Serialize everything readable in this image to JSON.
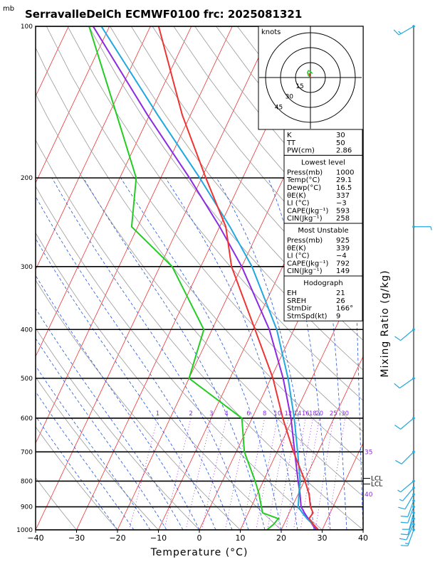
{
  "title": "SerravalleDelCh ECMWF0100  frc: 2025081321",
  "y_unit": "mb",
  "xlabel": "Temperature (°C)",
  "mixing_label": "Mixing Ratio (g/kg)",
  "hodograph": {
    "unit": "knots",
    "rings": [
      "15",
      "30",
      "45"
    ]
  },
  "indices": [
    {
      "type": "row",
      "label": "K",
      "value": "30"
    },
    {
      "type": "row",
      "label": "TT",
      "value": "50"
    },
    {
      "type": "row",
      "label": "PW(cm)",
      "value": "2.86"
    },
    {
      "type": "header",
      "label": "Lowest level"
    },
    {
      "type": "row",
      "label": "Press(mb)",
      "value": "1000"
    },
    {
      "type": "row",
      "label": "Temp(°C)",
      "value": "29.1"
    },
    {
      "type": "row",
      "label": "Dewp(°C)",
      "value": "16.5"
    },
    {
      "type": "row",
      "label": "θE(K)",
      "value": "337"
    },
    {
      "type": "row",
      "label": "LI (°C)",
      "value": "−3"
    },
    {
      "type": "row",
      "label": "CAPE(Jkg⁻¹)",
      "value": "593"
    },
    {
      "type": "row",
      "label": "CIN(Jkg⁻¹)",
      "value": "258"
    },
    {
      "type": "header",
      "label": "Most Unstable"
    },
    {
      "type": "row",
      "label": "Press(mb)",
      "value": "925"
    },
    {
      "type": "row",
      "label": "θE(K)",
      "value": "339"
    },
    {
      "type": "row",
      "label": "LI (°C)",
      "value": "−4"
    },
    {
      "type": "row",
      "label": "CAPE(Jkg⁻¹)",
      "value": "792"
    },
    {
      "type": "row",
      "label": "CIN(Jkg⁻¹)",
      "value": "149"
    },
    {
      "type": "header",
      "label": "Hodograph"
    },
    {
      "type": "row",
      "label": "EH",
      "value": "21"
    },
    {
      "type": "row",
      "label": "SREH",
      "value": "26"
    },
    {
      "type": "row",
      "label": "StmDir",
      "value": "166°"
    },
    {
      "type": "row",
      "label": "StmSpd(kt)",
      "value": "9"
    }
  ],
  "chart_data": {
    "type": "line",
    "title": "SerravalleDelCh ECMWF0100  frc: 2025081321",
    "xlabel": "Temperature (°C)",
    "ylabel": "mb",
    "xlim": [
      -40,
      40
    ],
    "ylim": [
      1000,
      100
    ],
    "y_scale": "log",
    "x_ticks": [
      "−40",
      "−30",
      "−20",
      "−10",
      "0",
      "10",
      "20",
      "30",
      "40"
    ],
    "p_ticks": [
      "100",
      "200",
      "300",
      "400",
      "500",
      "600",
      "700",
      "800",
      "900",
      "1000"
    ],
    "mixing_ratio_labels": [
      "1",
      "2",
      "3",
      "4",
      "6",
      "8",
      "10",
      "12",
      "14",
      "16",
      "18",
      "20",
      "25",
      "30"
    ],
    "theta_e_labels": [
      "35",
      "40"
    ],
    "lcl_label": "LCL",
    "temperature_profile": [
      [
        1000,
        29.1
      ],
      [
        975,
        27.2
      ],
      [
        950,
        25.5
      ],
      [
        925,
        25.8
      ],
      [
        900,
        24.5
      ],
      [
        850,
        22.7
      ],
      [
        800,
        20.2
      ],
      [
        700,
        14.0
      ],
      [
        600,
        7.5
      ],
      [
        500,
        0.5
      ],
      [
        400,
        -9.5
      ],
      [
        300,
        -22.5
      ],
      [
        250,
        -28.5
      ],
      [
        200,
        -39.0
      ],
      [
        150,
        -52.0
      ],
      [
        100,
        -68.0
      ]
    ],
    "dewpoint_profile": [
      [
        1000,
        16.5
      ],
      [
        975,
        17.5
      ],
      [
        950,
        18.0
      ],
      [
        925,
        13.5
      ],
      [
        900,
        12.5
      ],
      [
        850,
        10.5
      ],
      [
        800,
        8.0
      ],
      [
        700,
        2.0
      ],
      [
        600,
        -2.5
      ],
      [
        500,
        -20.0
      ],
      [
        400,
        -22.0
      ],
      [
        300,
        -37.0
      ],
      [
        250,
        -51.5
      ],
      [
        200,
        -56.0
      ],
      [
        150,
        -68.0
      ],
      [
        100,
        -85.0
      ]
    ],
    "parcel_profile": [
      [
        1000,
        29.1
      ],
      [
        950,
        25.0
      ],
      [
        925,
        23.2
      ],
      [
        900,
        21.5
      ],
      [
        850,
        20.2
      ],
      [
        800,
        19.0
      ],
      [
        700,
        15.0
      ],
      [
        600,
        10.3
      ],
      [
        500,
        4.2
      ],
      [
        400,
        -4.2
      ],
      [
        300,
        -17.5
      ],
      [
        250,
        -27.5
      ],
      [
        200,
        -40.5
      ],
      [
        150,
        -58.0
      ],
      [
        100,
        -82.0
      ]
    ],
    "parcel_mu_profile": [
      [
        1000,
        28.5
      ],
      [
        950,
        25.3
      ],
      [
        925,
        23.7
      ],
      [
        900,
        22.2
      ],
      [
        850,
        20.5
      ],
      [
        800,
        18.5
      ],
      [
        700,
        14.3
      ],
      [
        600,
        9.5
      ],
      [
        500,
        3.0
      ],
      [
        400,
        -6.0
      ],
      [
        300,
        -20.0
      ],
      [
        250,
        -30.0
      ],
      [
        200,
        -43.0
      ],
      [
        150,
        -60.5
      ],
      [
        100,
        -84.0
      ]
    ],
    "wind_barbs": [
      {
        "p": 1000,
        "dir": 200,
        "spd": 15
      },
      {
        "p": 975,
        "dir": 205,
        "spd": 10
      },
      {
        "p": 950,
        "dir": 200,
        "spd": 10
      },
      {
        "p": 925,
        "dir": 195,
        "spd": 10
      },
      {
        "p": 900,
        "dir": 200,
        "spd": 10
      },
      {
        "p": 875,
        "dir": 200,
        "spd": 10
      },
      {
        "p": 850,
        "dir": 210,
        "spd": 10
      },
      {
        "p": 825,
        "dir": 220,
        "spd": 5
      },
      {
        "p": 800,
        "dir": 230,
        "spd": 5
      },
      {
        "p": 700,
        "dir": 225,
        "spd": 10
      },
      {
        "p": 600,
        "dir": 230,
        "spd": 10
      },
      {
        "p": 500,
        "dir": 235,
        "spd": 10
      },
      {
        "p": 400,
        "dir": 230,
        "spd": 10
      },
      {
        "p": 250,
        "dir": 90,
        "spd": 5
      },
      {
        "p": 100,
        "dir": 240,
        "spd": 15
      }
    ],
    "hodograph_trace": [
      [
        0,
        0
      ],
      [
        -2,
        2
      ],
      [
        -3,
        5
      ],
      [
        -2,
        7
      ],
      [
        0,
        6
      ],
      [
        2,
        4
      ]
    ]
  }
}
